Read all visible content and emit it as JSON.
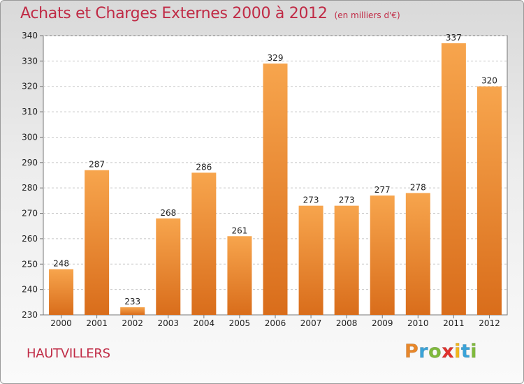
{
  "header": {
    "title": "Achats et Charges Externes 2000 à 2012",
    "unit": "(en milliers d'€)"
  },
  "footer": {
    "place": "HAUTVILLERS",
    "logo_letters": [
      "P",
      "r",
      "o",
      "x",
      "i",
      "t",
      "i"
    ],
    "logo_colors": [
      "#e8872a",
      "#3aa3d8",
      "#7fba3c",
      "#e2312d",
      "#f1b61c",
      "#3aa3d8",
      "#7fba3c"
    ]
  },
  "colors": {
    "bar_light": "#f7a54d",
    "bar_dark": "#d96d1b",
    "text": "#222222",
    "accent": "#c02a45"
  },
  "chart_data": {
    "type": "bar",
    "title": "Achats et Charges Externes 2000 à 2012",
    "subtitle": "(en milliers d'€)",
    "categories": [
      "2000",
      "2001",
      "2002",
      "2003",
      "2004",
      "2005",
      "2006",
      "2007",
      "2008",
      "2009",
      "2010",
      "2011",
      "2012"
    ],
    "values": [
      248,
      287,
      233,
      268,
      286,
      261,
      329,
      273,
      273,
      277,
      278,
      337,
      320
    ],
    "ylim": [
      230,
      340
    ],
    "yticks": [
      230,
      240,
      250,
      260,
      270,
      280,
      290,
      300,
      310,
      320,
      330,
      340
    ],
    "grid": "horizontal dashed",
    "xlabel": "",
    "ylabel": ""
  }
}
